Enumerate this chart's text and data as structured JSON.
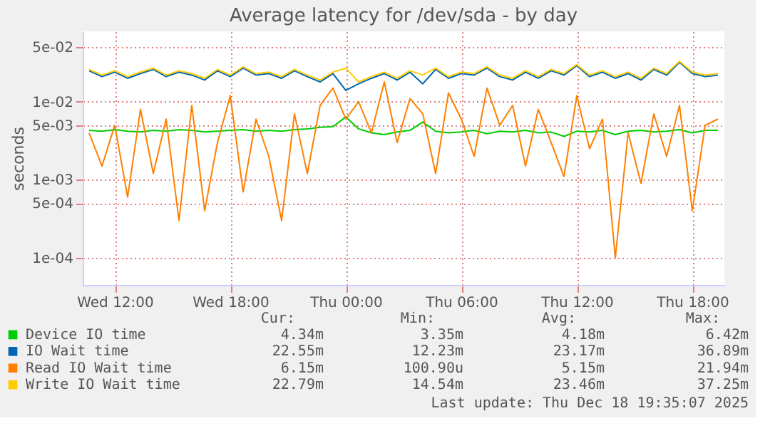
{
  "chart_data": {
    "type": "line",
    "title": "Average latency for /dev/sda - by day",
    "ylabel": "seconds",
    "x": [
      "2025-12-17T10:40",
      "2025-12-17T11:20",
      "2025-12-17T12:00",
      "2025-12-17T12:40",
      "2025-12-17T13:20",
      "2025-12-17T14:00",
      "2025-12-17T14:40",
      "2025-12-17T15:20",
      "2025-12-17T16:00",
      "2025-12-17T16:40",
      "2025-12-17T17:20",
      "2025-12-17T18:00",
      "2025-12-17T18:40",
      "2025-12-17T19:20",
      "2025-12-17T20:00",
      "2025-12-17T20:40",
      "2025-12-17T21:20",
      "2025-12-17T22:00",
      "2025-12-17T22:40",
      "2025-12-17T23:20",
      "2025-12-18T00:00",
      "2025-12-18T00:40",
      "2025-12-18T01:20",
      "2025-12-18T02:00",
      "2025-12-18T02:40",
      "2025-12-18T03:20",
      "2025-12-18T04:00",
      "2025-12-18T04:40",
      "2025-12-18T05:20",
      "2025-12-18T06:00",
      "2025-12-18T06:40",
      "2025-12-18T07:20",
      "2025-12-18T08:00",
      "2025-12-18T08:40",
      "2025-12-18T09:20",
      "2025-12-18T10:00",
      "2025-12-18T10:40",
      "2025-12-18T11:20",
      "2025-12-18T12:00",
      "2025-12-18T12:40",
      "2025-12-18T13:20",
      "2025-12-18T14:00",
      "2025-12-18T14:40",
      "2025-12-18T15:20",
      "2025-12-18T16:00",
      "2025-12-18T16:40",
      "2025-12-18T17:20",
      "2025-12-18T18:00",
      "2025-12-18T18:40",
      "2025-12-18T19:20"
    ],
    "series": [
      {
        "name": "Device IO time",
        "color": "#00cc00",
        "values": [
          0.0043,
          0.0042,
          0.0044,
          0.0042,
          0.0041,
          0.0043,
          0.0042,
          0.0044,
          0.0043,
          0.0041,
          0.0042,
          0.0043,
          0.0044,
          0.0042,
          0.0043,
          0.0042,
          0.0044,
          0.0045,
          0.0047,
          0.0048,
          0.0064,
          0.0045,
          0.004,
          0.0038,
          0.0041,
          0.0043,
          0.0055,
          0.0042,
          0.004,
          0.0041,
          0.0043,
          0.0039,
          0.0042,
          0.0041,
          0.0043,
          0.004,
          0.0041,
          0.0036,
          0.0042,
          0.0041,
          0.0043,
          0.0038,
          0.0042,
          0.0043,
          0.0041,
          0.0042,
          0.0044,
          0.004,
          0.0043,
          0.0043
        ]
      },
      {
        "name": "IO Wait time",
        "color": "#0066b3",
        "values": [
          0.025,
          0.021,
          0.024,
          0.02,
          0.023,
          0.026,
          0.021,
          0.024,
          0.022,
          0.019,
          0.025,
          0.021,
          0.027,
          0.022,
          0.023,
          0.02,
          0.025,
          0.021,
          0.018,
          0.023,
          0.014,
          0.017,
          0.02,
          0.023,
          0.019,
          0.024,
          0.017,
          0.026,
          0.02,
          0.023,
          0.022,
          0.027,
          0.021,
          0.019,
          0.024,
          0.02,
          0.025,
          0.022,
          0.029,
          0.021,
          0.024,
          0.02,
          0.023,
          0.019,
          0.026,
          0.022,
          0.032,
          0.023,
          0.021,
          0.022
        ]
      },
      {
        "name": "Read IO Wait time",
        "color": "#ff8000",
        "values": [
          0.004,
          0.0015,
          0.005,
          0.0006,
          0.008,
          0.0012,
          0.006,
          0.0003,
          0.009,
          0.0004,
          0.003,
          0.012,
          0.0007,
          0.006,
          0.002,
          0.0003,
          0.007,
          0.0012,
          0.009,
          0.015,
          0.006,
          0.01,
          0.004,
          0.018,
          0.003,
          0.011,
          0.007,
          0.0012,
          0.013,
          0.006,
          0.002,
          0.015,
          0.005,
          0.009,
          0.0015,
          0.008,
          0.003,
          0.0011,
          0.012,
          0.0025,
          0.006,
          0.0001,
          0.004,
          0.0009,
          0.007,
          0.002,
          0.009,
          0.0004,
          0.005,
          0.006
        ]
      },
      {
        "name": "Write IO Wait time",
        "color": "#ffcc00",
        "values": [
          0.026,
          0.022,
          0.025,
          0.021,
          0.024,
          0.027,
          0.022,
          0.025,
          0.023,
          0.02,
          0.026,
          0.022,
          0.028,
          0.023,
          0.024,
          0.021,
          0.026,
          0.022,
          0.019,
          0.024,
          0.027,
          0.018,
          0.021,
          0.024,
          0.02,
          0.025,
          0.022,
          0.027,
          0.021,
          0.024,
          0.023,
          0.028,
          0.022,
          0.02,
          0.025,
          0.021,
          0.026,
          0.023,
          0.03,
          0.022,
          0.025,
          0.021,
          0.024,
          0.02,
          0.027,
          0.023,
          0.033,
          0.024,
          0.022,
          0.023
        ]
      }
    ],
    "xlim": [
      "2025-12-17T10:20",
      "2025-12-18T19:40"
    ],
    "xticks": [
      {
        "value": "2025-12-17T12:00",
        "label": "Wed 12:00"
      },
      {
        "value": "2025-12-17T18:00",
        "label": "Wed 18:00"
      },
      {
        "value": "2025-12-18T00:00",
        "label": "Thu 00:00"
      },
      {
        "value": "2025-12-18T06:00",
        "label": "Thu 06:00"
      },
      {
        "value": "2025-12-18T12:00",
        "label": "Thu 12:00"
      },
      {
        "value": "2025-12-18T18:00",
        "label": "Thu 18:00"
      }
    ],
    "ylim": [
      4.5e-05,
      0.08
    ],
    "yticks": [
      {
        "value": 0.05,
        "label": "5e-02"
      },
      {
        "value": 0.01,
        "label": "1e-02"
      },
      {
        "value": 0.005,
        "label": "5e-03"
      },
      {
        "value": 0.001,
        "label": "1e-03"
      },
      {
        "value": 0.0005,
        "label": "5e-04"
      },
      {
        "value": 0.0001,
        "label": "1e-04"
      }
    ],
    "log": true,
    "grid": true,
    "legend": "bottom",
    "marker": "none",
    "line_style": "solid",
    "annotations": [
      "Cur:",
      "Min:",
      "Avg:",
      "Max:",
      "4.34m",
      "3.35m",
      "4.18m",
      "6.42m",
      "22.55m",
      "12.23m",
      "23.17m",
      "36.89m",
      "6.15m",
      "100.90u",
      "5.15m",
      "21.94m",
      "22.79m",
      "14.54m",
      "23.46m",
      "37.25m",
      "Last update: Thu Dec 18 19:35:07 2025"
    ]
  }
}
